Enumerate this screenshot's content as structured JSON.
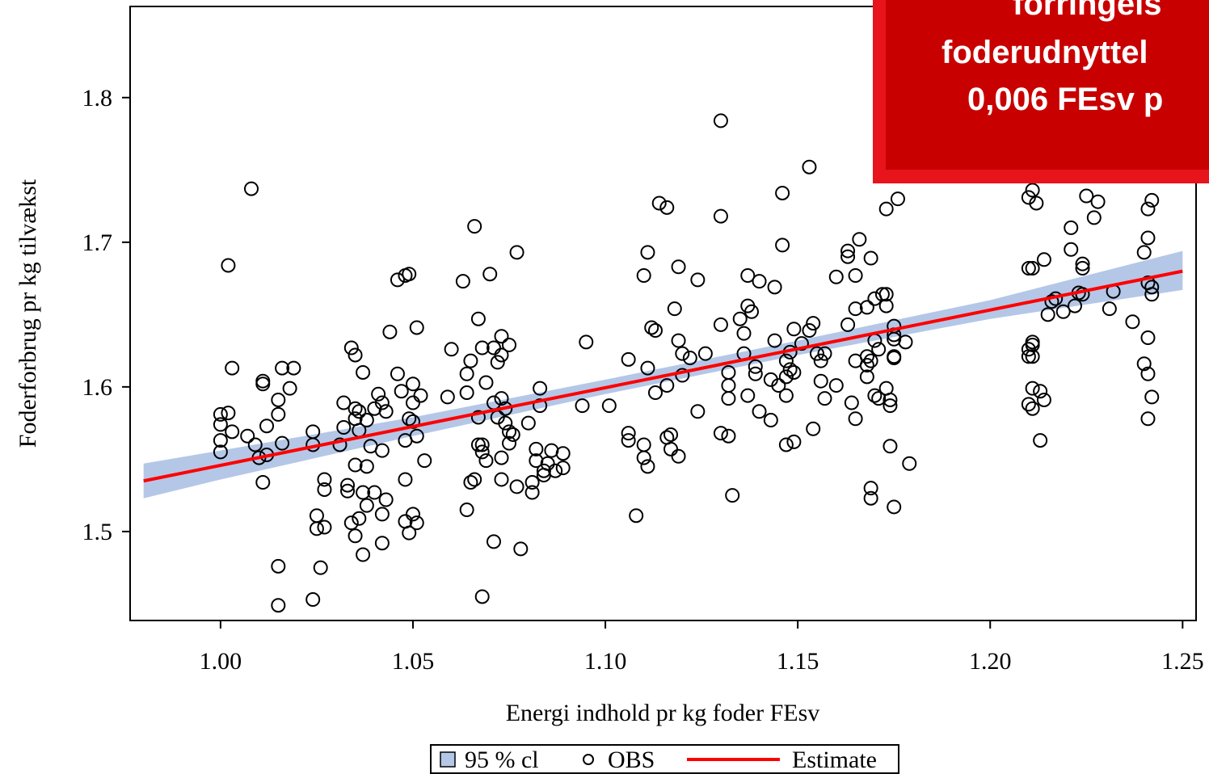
{
  "chart_data": {
    "type": "scatter",
    "x_label": "Energi indhold pr kg foder FEsv",
    "y_label": "Foderforbrug pr kg tilvækst",
    "xlim": [
      0.9765,
      1.2535
    ],
    "ylim": [
      1.4385,
      1.863
    ],
    "xticks": [
      {
        "value": 1.0,
        "label": "1.00"
      },
      {
        "value": 1.05,
        "label": "1.05"
      },
      {
        "value": 1.1,
        "label": "1.10"
      },
      {
        "value": 1.15,
        "label": "1.15"
      },
      {
        "value": 1.2,
        "label": "1.20"
      },
      {
        "value": 1.25,
        "label": "1.25"
      }
    ],
    "yticks": [
      1.5,
      1.6,
      1.7,
      1.8
    ],
    "legend": "bottom",
    "annotations": [
      "forringels",
      "foderudnyttel",
      "0,006 FEsv p"
    ],
    "series": [
      {
        "name": "95 % cl",
        "type": "band",
        "color": "#b4c7e7",
        "x": [
          0.98,
          1.0,
          1.05,
          1.1,
          1.15,
          1.2,
          1.25
        ],
        "lower": [
          1.523,
          1.536,
          1.566,
          1.595,
          1.622,
          1.647,
          1.667
        ],
        "upper": [
          1.547,
          1.556,
          1.579,
          1.605,
          1.632,
          1.66,
          1.694
        ]
      },
      {
        "name": "OBS",
        "type": "points",
        "color": "#000000",
        "x": [
          1.0,
          1.0,
          1.0,
          1.0,
          1.002,
          1.002,
          1.003,
          1.003,
          1.007,
          1.008,
          1.009,
          1.01,
          1.011,
          1.011,
          1.011,
          1.012,
          1.012,
          1.015,
          1.015,
          1.016,
          1.018,
          1.019,
          1.016,
          1.015,
          1.015,
          1.024,
          1.024,
          1.024,
          1.025,
          1.025,
          1.026,
          1.027,
          1.027,
          1.027,
          1.031,
          1.032,
          1.032,
          1.033,
          1.033,
          1.034,
          1.035,
          1.035,
          1.036,
          1.035,
          1.037,
          1.035,
          1.036,
          1.038,
          1.038,
          1.034,
          1.035,
          1.036,
          1.037,
          1.037,
          1.038,
          1.04,
          1.039,
          1.042,
          1.041,
          1.042,
          1.043,
          1.04,
          1.042,
          1.042,
          1.043,
          1.044,
          1.046,
          1.046,
          1.048,
          1.049,
          1.047,
          1.048,
          1.048,
          1.048,
          1.049,
          1.05,
          1.051,
          1.049,
          1.05,
          1.05,
          1.052,
          1.05,
          1.051,
          1.051,
          1.053,
          1.059,
          1.06,
          1.063,
          1.064,
          1.064,
          1.064,
          1.065,
          1.066,
          1.065,
          1.066,
          1.067,
          1.067,
          1.067,
          1.068,
          1.068,
          1.069,
          1.068,
          1.07,
          1.069,
          1.068,
          1.071,
          1.071,
          1.072,
          1.071,
          1.072,
          1.073,
          1.073,
          1.075,
          1.073,
          1.073,
          1.074,
          1.073,
          1.074,
          1.075,
          1.076,
          1.075,
          1.077,
          1.077,
          1.078,
          1.08,
          1.081,
          1.081,
          1.082,
          1.083,
          1.083,
          1.082,
          1.084,
          1.084,
          1.085,
          1.086,
          1.087,
          1.089,
          1.089,
          1.094,
          1.095,
          1.101,
          1.106,
          1.106,
          1.106,
          1.108,
          1.11,
          1.11,
          1.11,
          1.111,
          1.111,
          1.111,
          1.112,
          1.113,
          1.113,
          1.114,
          1.116,
          1.116,
          1.116,
          1.117,
          1.117,
          1.118,
          1.119,
          1.119,
          1.12,
          1.12,
          1.119,
          1.122,
          1.124,
          1.124,
          1.126,
          1.13,
          1.13,
          1.13,
          1.13,
          1.132,
          1.132,
          1.132,
          1.132,
          1.133,
          1.135,
          1.136,
          1.136,
          1.137,
          1.138,
          1.137,
          1.137,
          1.139,
          1.139,
          1.14,
          1.14,
          1.143,
          1.143,
          1.144,
          1.144,
          1.146,
          1.146,
          1.145,
          1.147,
          1.147,
          1.147,
          1.148,
          1.148,
          1.149,
          1.147,
          1.149,
          1.149,
          1.151,
          1.153,
          1.154,
          1.153,
          1.154,
          1.155,
          1.156,
          1.157,
          1.156,
          1.157,
          1.16,
          1.16,
          1.163,
          1.163,
          1.165,
          1.166,
          1.163,
          1.164,
          1.165,
          1.165,
          1.165,
          1.168,
          1.168,
          1.168,
          1.169,
          1.168,
          1.17,
          1.169,
          1.169,
          1.169,
          1.17,
          1.171,
          1.17,
          1.171,
          1.172,
          1.173,
          1.173,
          1.173,
          1.176,
          1.173,
          1.174,
          1.174,
          1.174,
          1.175,
          1.175,
          1.175,
          1.175,
          1.175,
          1.175,
          1.178,
          1.179,
          1.21,
          1.21,
          1.211,
          1.211,
          1.211,
          1.21,
          1.211,
          1.211,
          1.213,
          1.214,
          1.213,
          1.21,
          1.211,
          1.21,
          1.211,
          1.212,
          1.214,
          1.215,
          1.216,
          1.217,
          1.219,
          1.221,
          1.221,
          1.222,
          1.223,
          1.224,
          1.224,
          1.224,
          1.225,
          1.228,
          1.227,
          1.231,
          1.232,
          1.237,
          1.24,
          1.24,
          1.241,
          1.241,
          1.242,
          1.241,
          1.242,
          1.242,
          1.241,
          1.241,
          1.242,
          1.241
        ],
        "values": [
          1.581,
          1.574,
          1.563,
          1.555,
          1.582,
          1.684,
          1.613,
          1.569,
          1.566,
          1.737,
          1.56,
          1.551,
          1.534,
          1.604,
          1.602,
          1.573,
          1.553,
          1.581,
          1.591,
          1.613,
          1.599,
          1.613,
          1.561,
          1.476,
          1.449,
          1.569,
          1.56,
          1.453,
          1.511,
          1.502,
          1.475,
          1.536,
          1.529,
          1.503,
          1.56,
          1.589,
          1.572,
          1.532,
          1.528,
          1.627,
          1.622,
          1.585,
          1.583,
          1.578,
          1.61,
          1.546,
          1.57,
          1.577,
          1.545,
          1.506,
          1.497,
          1.509,
          1.484,
          1.527,
          1.518,
          1.527,
          1.559,
          1.556,
          1.595,
          1.589,
          1.583,
          1.585,
          1.512,
          1.492,
          1.522,
          1.638,
          1.609,
          1.674,
          1.677,
          1.678,
          1.597,
          1.563,
          1.536,
          1.507,
          1.499,
          1.512,
          1.506,
          1.578,
          1.589,
          1.602,
          1.594,
          1.576,
          1.641,
          1.566,
          1.549,
          1.593,
          1.626,
          1.673,
          1.515,
          1.596,
          1.609,
          1.534,
          1.536,
          1.618,
          1.711,
          1.647,
          1.579,
          1.56,
          1.56,
          1.555,
          1.549,
          1.455,
          1.678,
          1.603,
          1.627,
          1.627,
          1.589,
          1.579,
          1.493,
          1.617,
          1.635,
          1.622,
          1.629,
          1.551,
          1.592,
          1.585,
          1.536,
          1.575,
          1.561,
          1.567,
          1.569,
          1.693,
          1.531,
          1.488,
          1.575,
          1.534,
          1.527,
          1.557,
          1.599,
          1.587,
          1.549,
          1.542,
          1.539,
          1.547,
          1.556,
          1.542,
          1.554,
          1.544,
          1.587,
          1.631,
          1.587,
          1.563,
          1.619,
          1.568,
          1.511,
          1.677,
          1.551,
          1.56,
          1.545,
          1.613,
          1.693,
          1.641,
          1.639,
          1.596,
          1.727,
          1.724,
          1.601,
          1.565,
          1.567,
          1.557,
          1.654,
          1.683,
          1.632,
          1.623,
          1.608,
          1.552,
          1.62,
          1.674,
          1.583,
          1.623,
          1.784,
          1.718,
          1.643,
          1.568,
          1.566,
          1.61,
          1.601,
          1.592,
          1.525,
          1.647,
          1.637,
          1.623,
          1.656,
          1.652,
          1.677,
          1.594,
          1.614,
          1.609,
          1.583,
          1.673,
          1.605,
          1.577,
          1.669,
          1.632,
          1.698,
          1.734,
          1.601,
          1.618,
          1.607,
          1.594,
          1.612,
          1.624,
          1.61,
          1.56,
          1.562,
          1.64,
          1.63,
          1.752,
          1.571,
          1.639,
          1.644,
          1.623,
          1.618,
          1.623,
          1.604,
          1.592,
          1.601,
          1.676,
          1.694,
          1.69,
          1.677,
          1.702,
          1.643,
          1.589,
          1.578,
          1.654,
          1.618,
          1.621,
          1.615,
          1.607,
          1.618,
          1.655,
          1.661,
          1.689,
          1.53,
          1.523,
          1.632,
          1.626,
          1.594,
          1.592,
          1.664,
          1.664,
          1.656,
          1.723,
          1.73,
          1.599,
          1.591,
          1.587,
          1.559,
          1.636,
          1.642,
          1.633,
          1.621,
          1.62,
          1.517,
          1.631,
          1.547,
          1.621,
          1.626,
          1.629,
          1.631,
          1.621,
          1.588,
          1.585,
          1.599,
          1.597,
          1.591,
          1.563,
          1.682,
          1.682,
          1.731,
          1.736,
          1.727,
          1.688,
          1.65,
          1.659,
          1.661,
          1.652,
          1.695,
          1.71,
          1.656,
          1.665,
          1.682,
          1.685,
          1.664,
          1.732,
          1.728,
          1.717,
          1.654,
          1.666,
          1.645,
          1.693,
          1.616,
          1.703,
          1.723,
          1.729,
          1.672,
          1.669,
          1.664,
          1.634,
          1.609,
          1.593,
          1.578
        ]
      },
      {
        "name": "Estimate",
        "type": "line",
        "color": "#ff0000",
        "x": [
          0.98,
          1.25
        ],
        "values": [
          1.535,
          1.68
        ]
      }
    ]
  }
}
